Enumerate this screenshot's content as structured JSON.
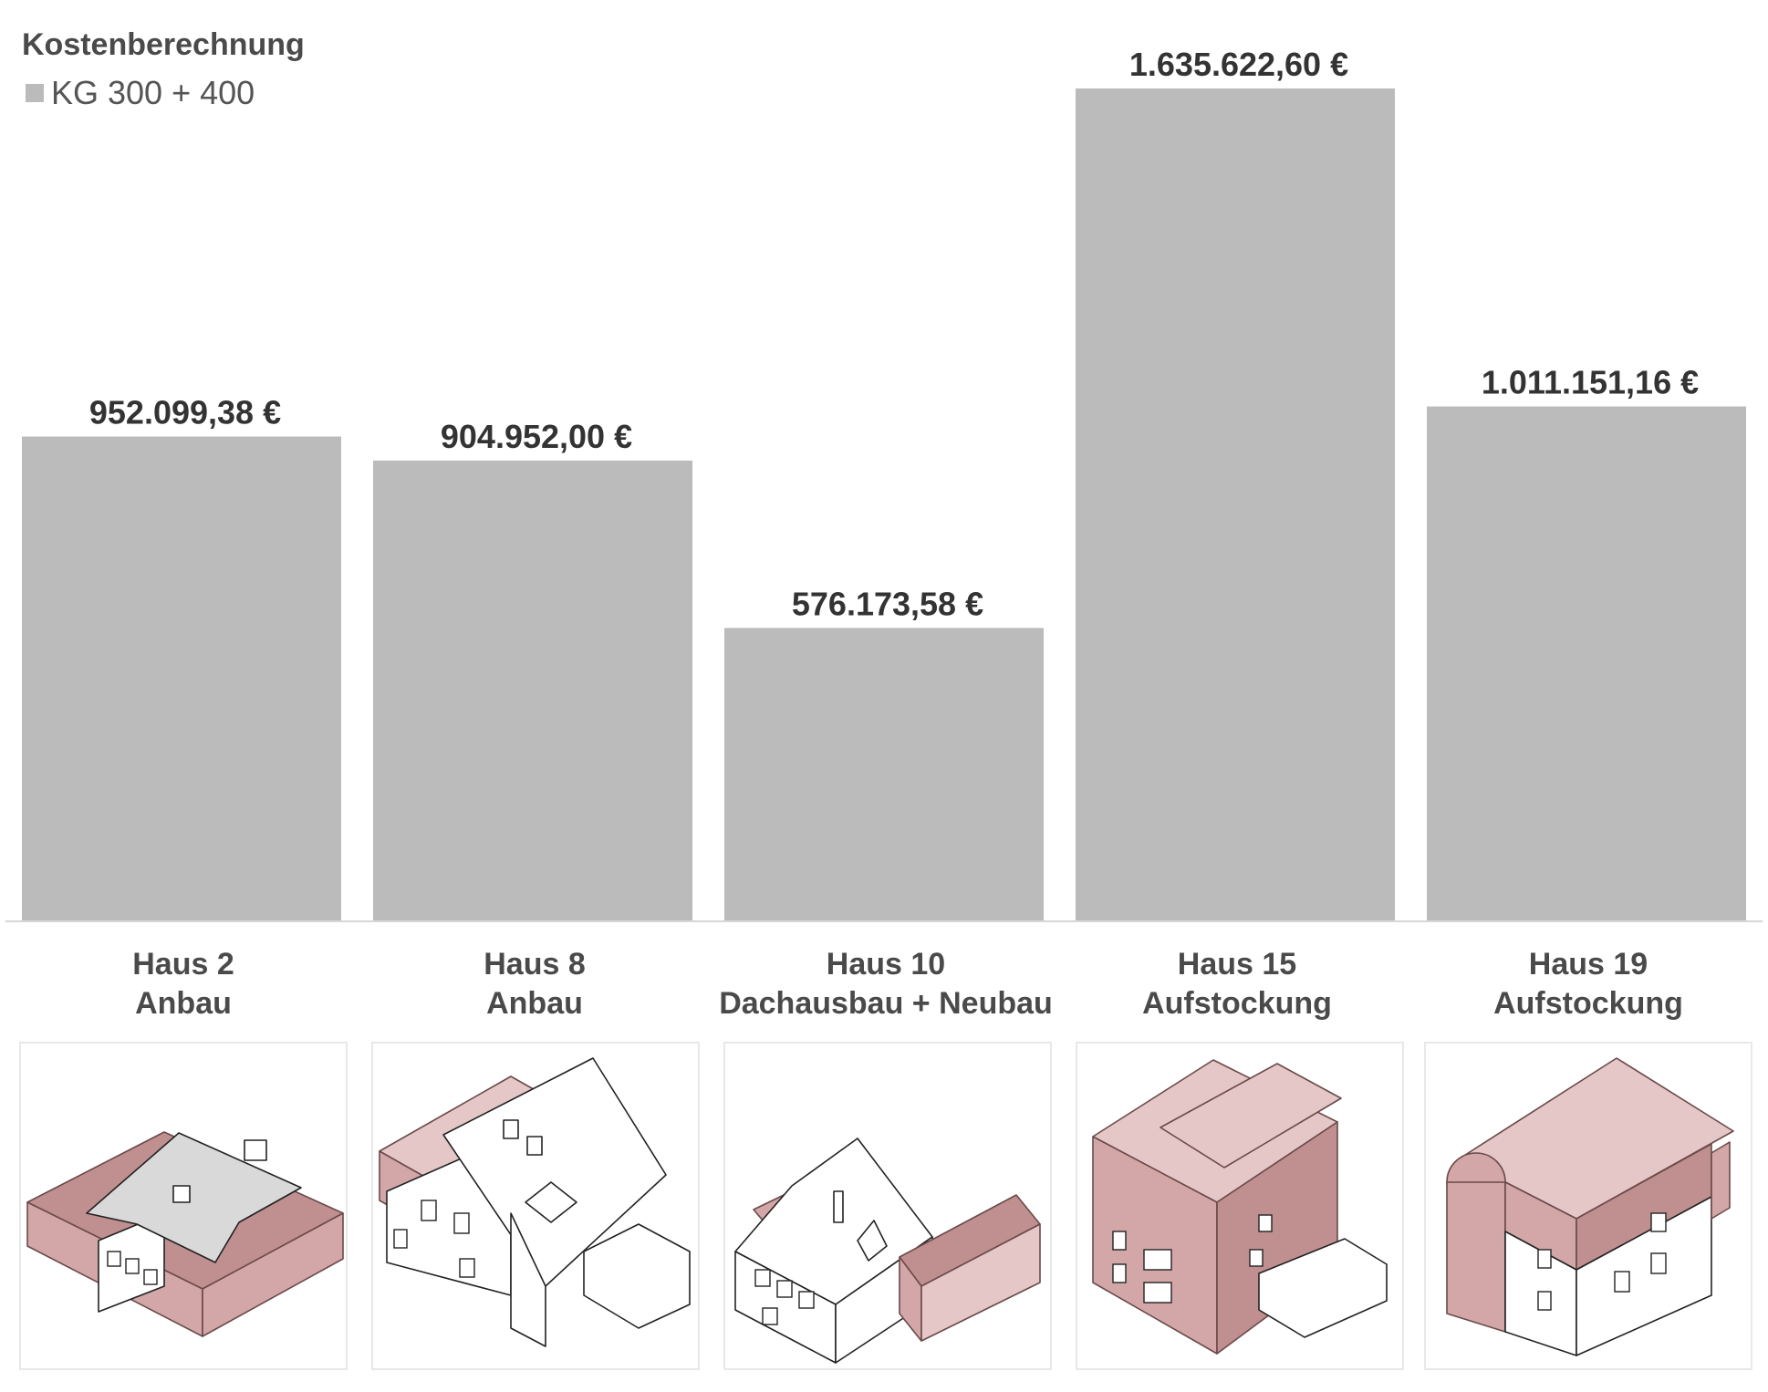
{
  "chart_data": {
    "type": "bar",
    "title": "Kostenberechnung",
    "legend": {
      "placement": "top-left",
      "entries": [
        {
          "label": "KG 300 + 400",
          "color": "#bbbbbb"
        }
      ]
    },
    "series": [
      {
        "name": "KG 300 + 400",
        "values": [
          952099.38,
          904952.0,
          576173.58,
          1635622.6,
          1011151.16
        ]
      }
    ],
    "categories": [
      {
        "name": "Haus 2",
        "type": "Anbau"
      },
      {
        "name": "Haus 8",
        "type": "Anbau"
      },
      {
        "name": "Haus 10",
        "type": "Dachausbau + Neubau"
      },
      {
        "name": "Haus 15",
        "type": "Aufstockung"
      },
      {
        "name": "Haus 19",
        "type": "Aufstockung"
      }
    ],
    "value_labels": [
      "952.099,38 €",
      "904.952,00 €",
      "576.173,58 €",
      "1.635.622,60 €",
      "1.011.151,16 €"
    ],
    "ylim": [
      0,
      1635622.6
    ],
    "grid": false,
    "xlabel": "",
    "ylabel": ""
  },
  "colors": {
    "bar": "#bbbbbb",
    "accent": "#d3a7a7"
  },
  "images": [
    {
      "icon": "haus-2-axonometric-drawing"
    },
    {
      "icon": "haus-8-axonometric-drawing"
    },
    {
      "icon": "haus-10-axonometric-drawing"
    },
    {
      "icon": "haus-15-axonometric-drawing"
    },
    {
      "icon": "haus-19-axonometric-drawing"
    }
  ]
}
